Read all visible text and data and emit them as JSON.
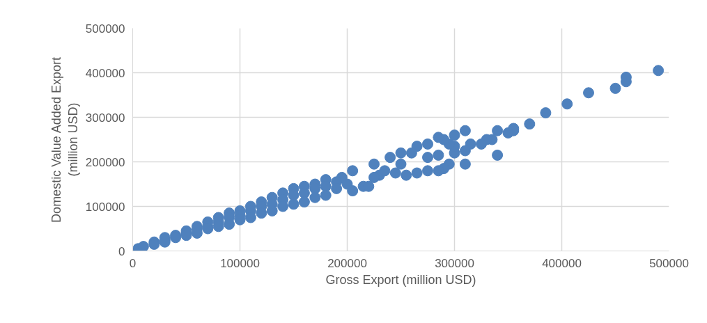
{
  "chart_data": {
    "type": "scatter",
    "xlabel": "Gross Export (million USD)",
    "ylabel": "Domestic Value Added Export\n(million USD)",
    "x": [
      490000,
      460000,
      460000,
      450000,
      425000,
      405000,
      385000,
      370000,
      355000,
      355000,
      350000,
      340000,
      340000,
      335000,
      330000,
      325000,
      315000,
      310000,
      310000,
      310000,
      300000,
      300000,
      300000,
      295000,
      290000,
      285000,
      295000,
      290000,
      285000,
      285000,
      275000,
      275000,
      275000,
      265000,
      260000,
      250000,
      240000,
      250000,
      245000,
      255000,
      265000,
      225000,
      205000,
      205000,
      215000,
      220000,
      230000,
      225000,
      235000,
      195000,
      200000,
      5000,
      10000,
      20000,
      20000,
      30000,
      30000,
      30000,
      40000,
      40000,
      50000,
      50000,
      50000,
      60000,
      60000,
      60000,
      70000,
      70000,
      70000,
      80000,
      80000,
      80000,
      90000,
      90000,
      90000,
      100000,
      100000,
      100000,
      110000,
      110000,
      110000,
      120000,
      120000,
      120000,
      130000,
      130000,
      130000,
      140000,
      140000,
      140000,
      150000,
      150000,
      150000,
      160000,
      160000,
      160000,
      170000,
      170000,
      170000,
      180000,
      180000,
      180000,
      190000,
      190000
    ],
    "values": [
      405000,
      390000,
      380000,
      365000,
      355000,
      330000,
      310000,
      285000,
      275000,
      270000,
      265000,
      270000,
      215000,
      250000,
      250000,
      240000,
      240000,
      270000,
      195000,
      225000,
      220000,
      260000,
      235000,
      195000,
      185000,
      180000,
      240000,
      250000,
      255000,
      215000,
      210000,
      240000,
      180000,
      235000,
      220000,
      220000,
      210000,
      195000,
      175000,
      170000,
      175000,
      195000,
      180000,
      135000,
      145000,
      145000,
      170000,
      165000,
      180000,
      165000,
      150000,
      5000,
      10000,
      20000,
      15000,
      30000,
      25000,
      20000,
      35000,
      30000,
      45000,
      40000,
      35000,
      55000,
      50000,
      40000,
      65000,
      55000,
      50000,
      75000,
      65000,
      55000,
      85000,
      75000,
      60000,
      90000,
      80000,
      70000,
      100000,
      90000,
      75000,
      110000,
      100000,
      85000,
      120000,
      105000,
      90000,
      130000,
      115000,
      100000,
      140000,
      125000,
      105000,
      145000,
      130000,
      110000,
      150000,
      140000,
      120000,
      160000,
      145000,
      125000,
      155000,
      140000
    ],
    "color": "#4f81bd",
    "marker": "circle",
    "xlim": [
      0,
      500000
    ],
    "ylim": [
      0,
      500000
    ],
    "xticks": [
      0,
      100000,
      200000,
      300000,
      400000,
      500000
    ],
    "yticks": [
      0,
      100000,
      200000,
      300000,
      400000,
      500000
    ],
    "grid": true
  }
}
